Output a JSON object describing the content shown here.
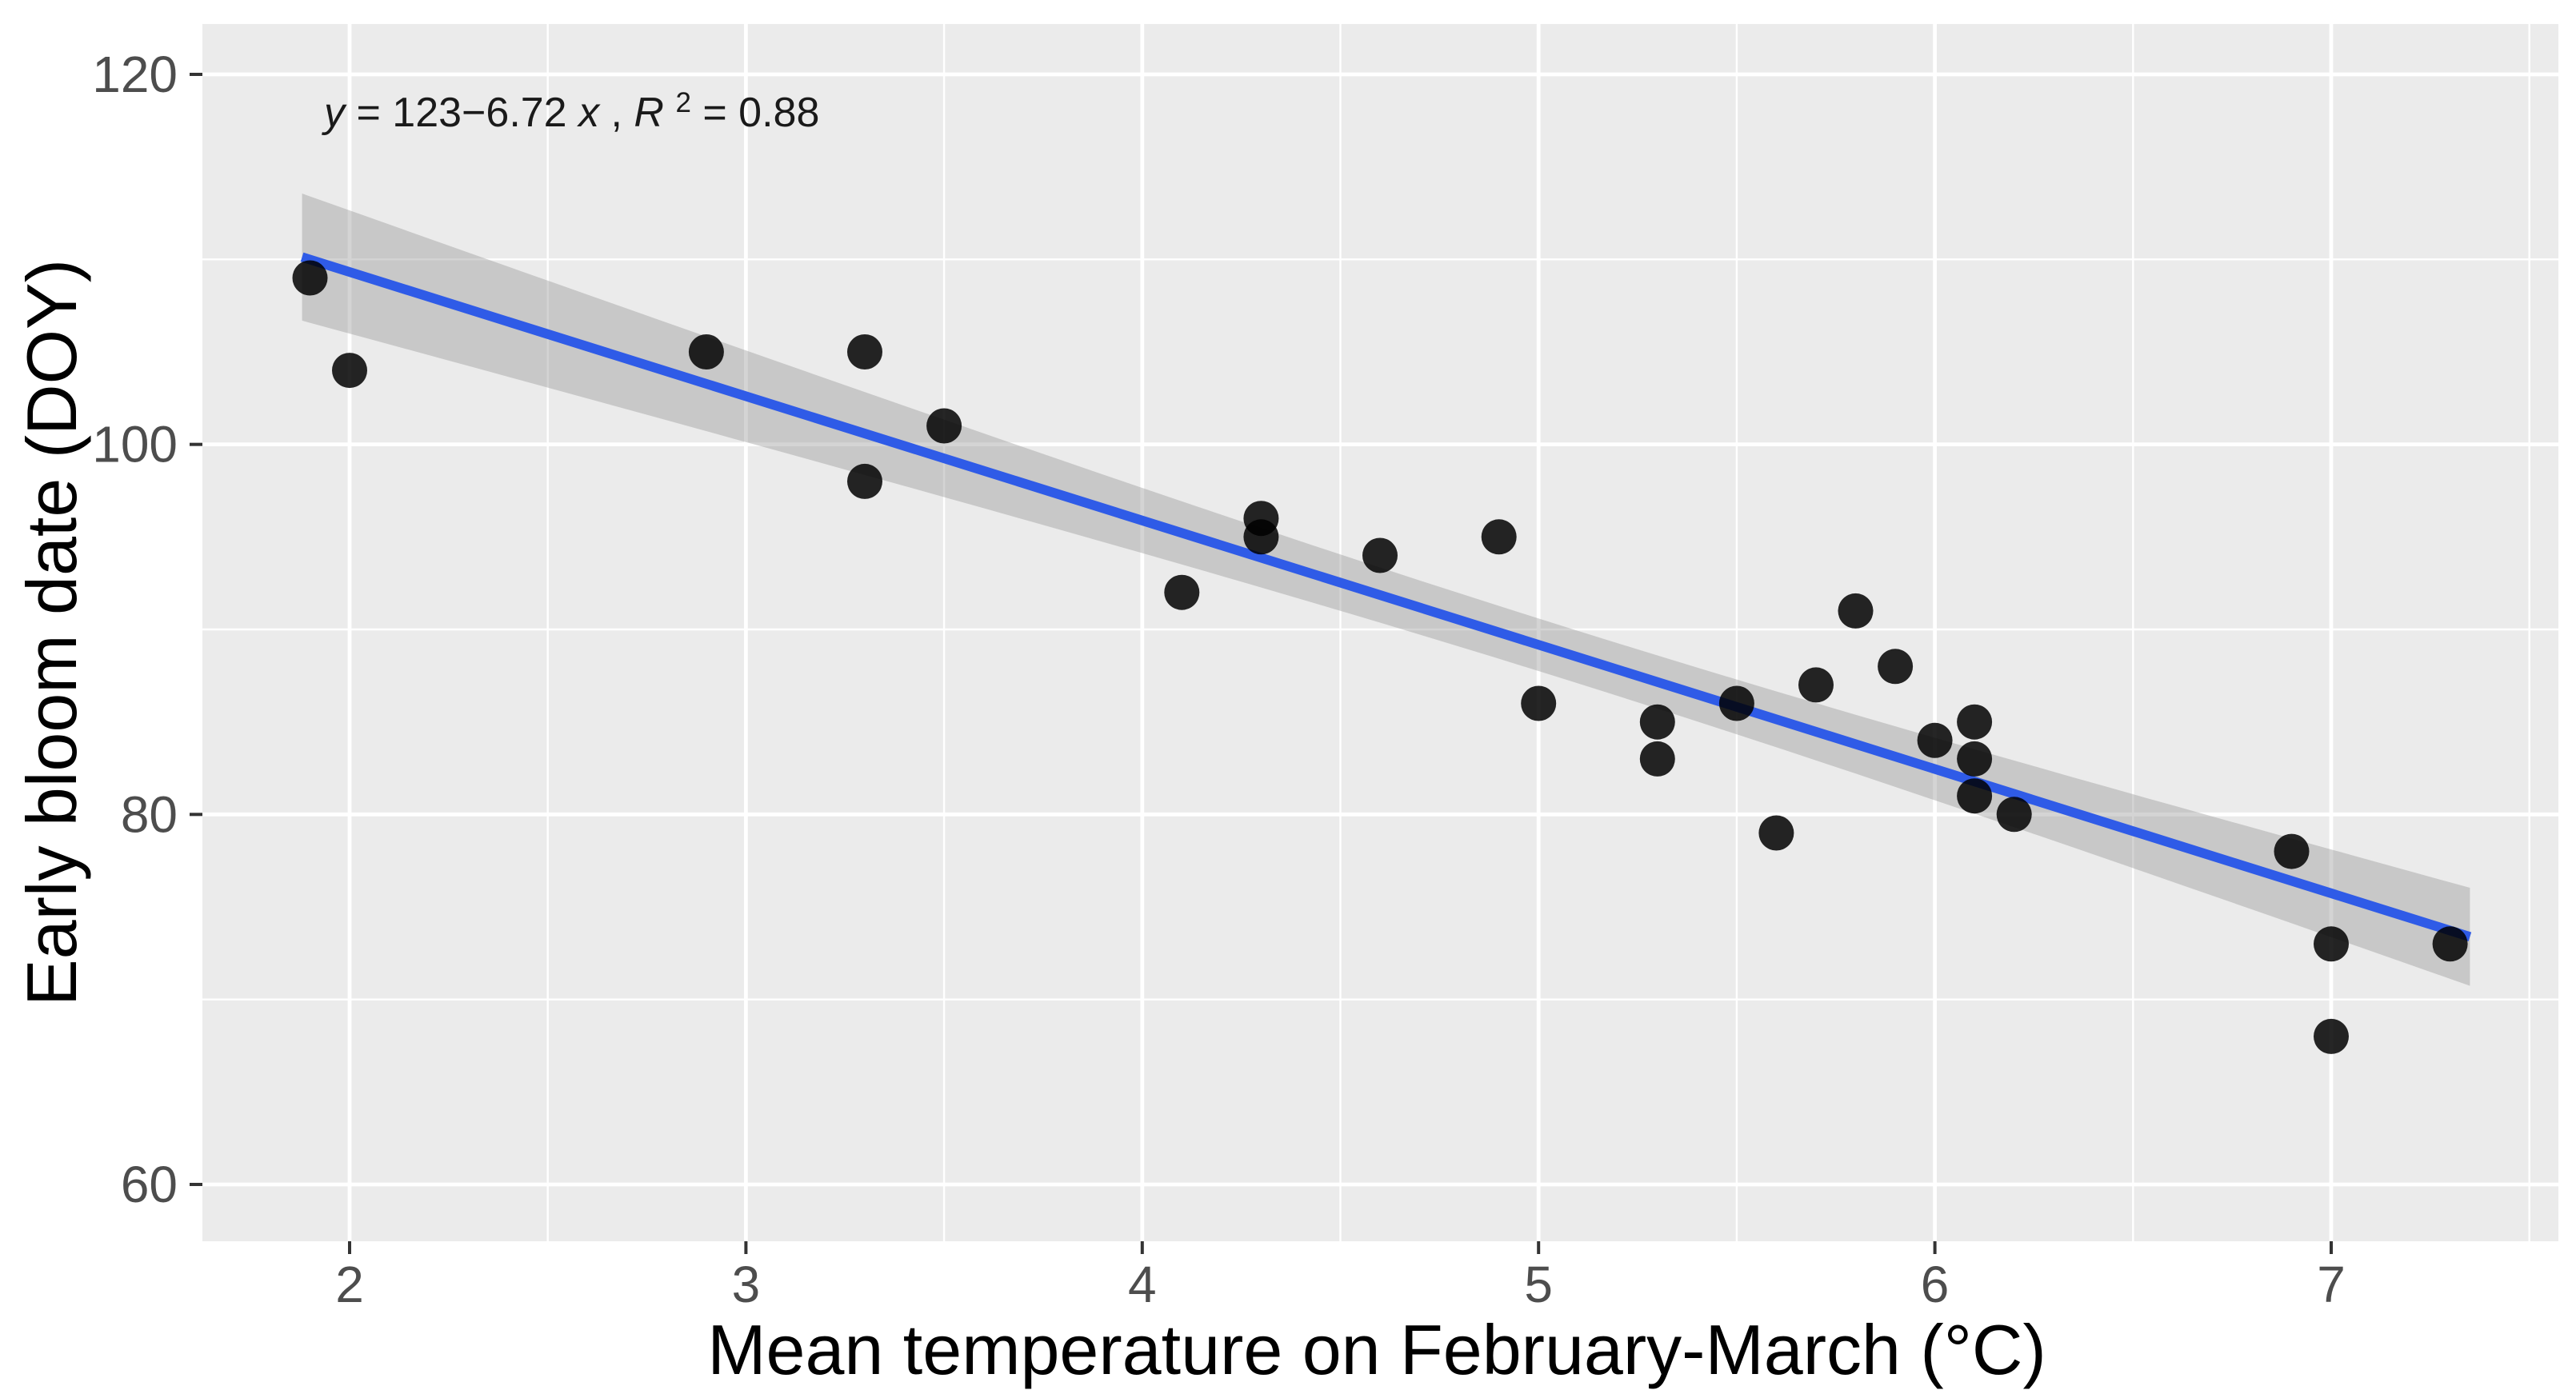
{
  "chart_data": {
    "type": "scatter",
    "title": "",
    "xlabel": "Mean temperature on February-March (°C)",
    "ylabel": "Early bloom date (DOY)",
    "annotation": {
      "full_text": "y = 123−6.72 x, R² = 0.88",
      "y_var": "y",
      "mid": " = 123−6.72 ",
      "x_var": "x",
      "comma": ", ",
      "r_var": "R",
      "sup": "2",
      "tail": " = 0.88"
    },
    "points": [
      [
        1.9,
        109
      ],
      [
        2.0,
        104
      ],
      [
        2.9,
        105
      ],
      [
        3.3,
        105
      ],
      [
        3.3,
        98
      ],
      [
        3.5,
        101
      ],
      [
        4.1,
        92
      ],
      [
        4.3,
        96
      ],
      [
        4.3,
        95
      ],
      [
        4.6,
        94
      ],
      [
        4.9,
        95
      ],
      [
        5.0,
        86
      ],
      [
        5.3,
        85
      ],
      [
        5.3,
        83
      ],
      [
        5.5,
        86
      ],
      [
        5.6,
        79
      ],
      [
        5.7,
        87
      ],
      [
        5.8,
        91
      ],
      [
        5.9,
        88
      ],
      [
        6.0,
        84
      ],
      [
        6.1,
        85
      ],
      [
        6.1,
        83
      ],
      [
        6.1,
        81
      ],
      [
        6.2,
        80
      ],
      [
        6.9,
        78
      ],
      [
        7.0,
        73
      ],
      [
        7.0,
        68
      ],
      [
        7.3,
        73
      ]
    ],
    "regression": {
      "equation_intercept": 123,
      "equation_slope": -6.72,
      "r_squared": 0.88,
      "smooth_x_start": 1.88,
      "smooth_x_end": 7.35,
      "ci_level": 0.95
    },
    "x_axis": {
      "domain": [
        1.63,
        7.57
      ],
      "ticks": [
        2,
        3,
        4,
        5,
        6,
        7
      ],
      "tick_labels": [
        "2",
        "3",
        "4",
        "5",
        "6",
        "7"
      ],
      "minor_ticks": [
        2.5,
        3.5,
        4.5,
        5.5,
        6.5,
        7.5
      ]
    },
    "y_axis": {
      "domain": [
        56.9,
        122.7
      ],
      "ticks": [
        60,
        80,
        100,
        120
      ],
      "tick_labels": [
        "60",
        "80",
        "100",
        "120"
      ],
      "minor_ticks": [
        70,
        90,
        110
      ]
    },
    "legend": {
      "visible": false
    },
    "grid": "on",
    "colors": {
      "panel_background": "#EBEBEB",
      "gridline": "#FFFFFF",
      "ci_band": "#999999",
      "ci_band_opacity": 0.42,
      "regression_line": "#2F5BE7",
      "point": "#000000",
      "point_opacity": 0.85,
      "tick_label_text": "#4D4D4D",
      "axis_title_text": "#000000",
      "tick_mark": "#333333",
      "annotation_text": "#1A1A1A"
    }
  }
}
